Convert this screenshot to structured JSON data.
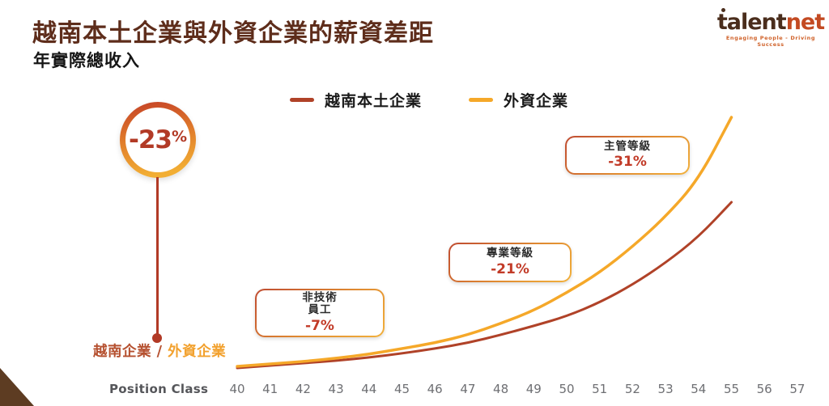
{
  "meta": {
    "title": "越南本土企業與外資企業的薪資差距",
    "subtitle": "年實際總收入"
  },
  "logo": {
    "brand_primary": "talent",
    "brand_secondary": "net",
    "tagline": "Engaging People - Driving Success"
  },
  "badge": {
    "number": "-23",
    "sign": "%"
  },
  "gap_note": {
    "local": "越南企業",
    "sep": " / ",
    "foreign": "外資企業"
  },
  "chart_data": {
    "type": "line",
    "title": "越南本土企業與外資企業的薪資差距",
    "subtitle": "年實際總收入",
    "xlabel": "Position Class",
    "ylabel": "年實際總收入 (relative index, y-axis hidden)",
    "x_ticks": [
      "40",
      "41",
      "42",
      "43",
      "44",
      "45",
      "46",
      "47",
      "48",
      "49",
      "50",
      "51",
      "52",
      "53",
      "54",
      "55",
      "56",
      "57"
    ],
    "x": [
      40,
      41,
      42,
      43,
      44,
      45,
      46,
      47,
      48,
      49,
      50,
      51,
      52,
      53,
      54,
      55
    ],
    "series": [
      {
        "name": "越南本土企業",
        "color": "#b04228",
        "values_relative_index_approx": [
          0,
          3,
          6,
          9,
          13,
          18,
          24,
          31,
          41,
          52,
          64,
          81,
          103,
          130,
          162,
          205
        ]
      },
      {
        "name": "外資企業",
        "color": "#f5a829",
        "values_relative_index_approx": [
          2,
          5,
          8,
          12,
          17,
          24,
          31,
          41,
          55,
          71,
          93,
          118,
          150,
          187,
          233,
          310
        ]
      }
    ],
    "legend_position": "top-center",
    "grid": false,
    "annotations": [
      {
        "label_lines": [
          "非技術",
          "員工"
        ],
        "value": "-7%"
      },
      {
        "label_lines": [
          "專業等級"
        ],
        "value": "-21%"
      },
      {
        "label_lines": [
          "主管等級"
        ],
        "value": "-31%"
      }
    ],
    "overall_gap": {
      "value": "-23%",
      "label": "越南企業 / 外資企業"
    }
  }
}
